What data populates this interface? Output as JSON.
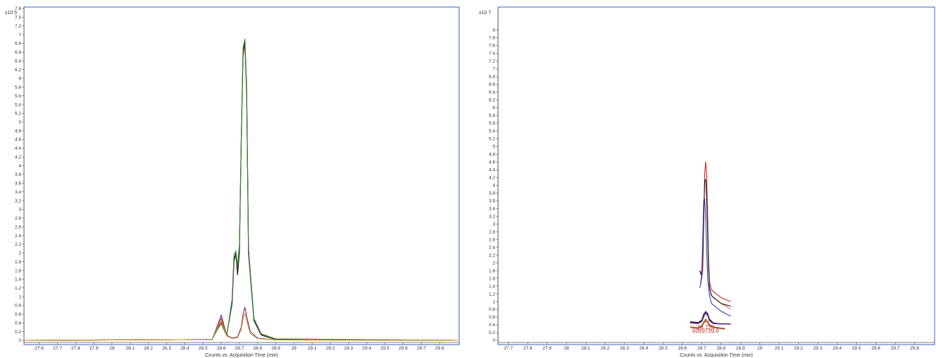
{
  "chart_data": [
    {
      "type": "line",
      "panel": "left",
      "y_multiplier": "x10 5",
      "xlabel": "Counts vs. Acquisition Time (min)",
      "xlim": [
        27.52,
        29.9
      ],
      "ylim": [
        0,
        7.6
      ],
      "x_ticks": [
        "27.6",
        "27.7",
        "27.8",
        "27.9",
        "28",
        "28.1",
        "28.2",
        "28.3",
        "28.4",
        "28.5",
        "28.6",
        "28.7",
        "28.8",
        "28.9",
        "29",
        "29.1",
        "29.2",
        "29.3",
        "29.4",
        "29.5",
        "29.6",
        "29.7",
        "29.8"
      ],
      "y_ticks": [
        "0",
        "0.2",
        "0.4",
        "0.6",
        "0.8",
        "1",
        "1.2",
        "1.4",
        "1.6",
        "1.8",
        "2",
        "2.2",
        "2.4",
        "2.6",
        "2.8",
        "3",
        "3.2",
        "3.4",
        "3.6",
        "3.8",
        "4",
        "4.2",
        "4.4",
        "4.6",
        "4.8",
        "5",
        "5.2",
        "5.4",
        "5.6",
        "5.8",
        "6",
        "6.2",
        "6.4",
        "6.6",
        "6.8",
        "7",
        "7.2",
        "7.4",
        "7.6"
      ],
      "series": [
        {
          "color": "#d62020",
          "x": [
            27.52,
            28.55,
            28.58,
            28.6,
            28.63,
            28.66,
            28.67,
            28.68,
            28.69,
            28.7,
            28.71,
            28.72,
            28.73,
            28.74,
            28.75,
            28.78,
            28.82,
            28.9,
            29.9
          ],
          "y": [
            0,
            0.02,
            0.28,
            0.42,
            0.12,
            0.9,
            1.9,
            1.95,
            1.6,
            2.1,
            4.5,
            6.5,
            6.8,
            5.6,
            2.0,
            0.5,
            0.15,
            0.03,
            0
          ]
        },
        {
          "color": "#1a1a1a",
          "x": [
            27.52,
            28.55,
            28.58,
            28.6,
            28.63,
            28.66,
            28.67,
            28.68,
            28.69,
            28.7,
            28.71,
            28.72,
            28.73,
            28.74,
            28.75,
            28.78,
            28.82,
            28.9,
            29.9
          ],
          "y": [
            0,
            0.02,
            0.3,
            0.5,
            0.12,
            0.85,
            1.8,
            2.0,
            1.5,
            2.0,
            4.6,
            6.6,
            6.85,
            5.7,
            2.0,
            0.45,
            0.12,
            0.02,
            0
          ]
        },
        {
          "color": "#2e8b2e",
          "x": [
            27.52,
            28.55,
            28.58,
            28.6,
            28.63,
            28.66,
            28.67,
            28.68,
            28.69,
            28.7,
            28.71,
            28.72,
            28.73,
            28.74,
            28.75,
            28.78,
            28.82,
            28.9,
            29.9
          ],
          "y": [
            0,
            0.02,
            0.25,
            0.38,
            0.1,
            0.95,
            1.95,
            2.05,
            1.7,
            2.2,
            4.6,
            6.7,
            6.9,
            5.8,
            2.1,
            0.5,
            0.14,
            0.03,
            0
          ]
        },
        {
          "color": "#8b1a8b",
          "x": [
            27.52,
            28.55,
            28.58,
            28.6,
            28.63,
            28.66,
            28.69,
            28.71,
            28.72,
            28.73,
            28.74,
            28.76,
            28.8,
            28.9,
            29.9
          ],
          "y": [
            0,
            0.02,
            0.35,
            0.58,
            0.12,
            0.05,
            0.08,
            0.3,
            0.6,
            0.76,
            0.55,
            0.2,
            0.05,
            0.01,
            0
          ]
        },
        {
          "color": "#c8a020",
          "x": [
            27.52,
            28.55,
            28.58,
            28.6,
            28.63,
            28.66,
            28.69,
            28.71,
            28.72,
            28.73,
            28.74,
            28.76,
            28.8,
            28.9,
            29.9
          ],
          "y": [
            0,
            0.02,
            0.3,
            0.48,
            0.1,
            0.04,
            0.06,
            0.25,
            0.5,
            0.62,
            0.45,
            0.15,
            0.04,
            0.01,
            0
          ]
        }
      ]
    },
    {
      "type": "line",
      "panel": "right",
      "y_multiplier": "x10 7",
      "xlabel": "Counts vs. Acquisition Time (min)",
      "xlim": [
        27.65,
        29.9
      ],
      "ylim": [
        0,
        8.3
      ],
      "x_ticks": [
        "27.7",
        "27.8",
        "27.9",
        "28",
        "28.1",
        "28.2",
        "28.3",
        "28.4",
        "28.5",
        "28.6",
        "28.7",
        "28.8",
        "28.9",
        "29",
        "29.1",
        "29.2",
        "29.3",
        "29.4",
        "29.5",
        "29.6",
        "29.7",
        "29.8"
      ],
      "y_ticks": [
        "0",
        "0.2",
        "0.4",
        "0.6",
        "0.8",
        "1",
        "1.2",
        "1.4",
        "1.6",
        "1.8",
        "2",
        "2.2",
        "2.4",
        "2.6",
        "2.8",
        "3",
        "3.2",
        "3.4",
        "3.6",
        "3.8",
        "4",
        "4.2",
        "4.4",
        "4.6",
        "4.8",
        "5",
        "5.2",
        "5.4",
        "5.6",
        "5.8",
        "6",
        "6.2",
        "6.4",
        "6.6",
        "6.8",
        "7",
        "7.2",
        "7.4",
        "7.6",
        "7.8",
        "8"
      ],
      "annotations": [
        {
          "text": "28.720",
          "x": 28.72,
          "y": 0.28
        },
        {
          "text": "6069739.8",
          "x": 28.72,
          "y": 0.19
        }
      ],
      "series": [
        {
          "color": "#d62020",
          "x": [
            28.695,
            28.705,
            28.71,
            28.715,
            28.72,
            28.725,
            28.73,
            28.735,
            28.74,
            28.75,
            28.8,
            28.85
          ],
          "y": [
            1.45,
            1.8,
            3.0,
            4.3,
            4.6,
            4.3,
            3.2,
            2.1,
            1.5,
            1.3,
            1.1,
            1.0
          ]
        },
        {
          "color": "#e07070",
          "x": [
            28.745,
            28.76,
            28.8,
            28.85
          ],
          "y": [
            1.2,
            1.1,
            0.95,
            0.8
          ]
        },
        {
          "color": "#1a1a1a",
          "x": [
            28.69,
            28.695,
            28.7,
            28.705,
            28.71,
            28.715,
            28.72,
            28.725,
            28.73,
            28.735,
            28.74,
            28.75,
            28.8,
            28.85
          ],
          "y": [
            1.8,
            1.7,
            1.8,
            2.2,
            3.3,
            4.1,
            4.15,
            3.7,
            2.8,
            1.9,
            1.35,
            1.15,
            0.95,
            0.88
          ]
        },
        {
          "color": "#2a3fbf",
          "x": [
            28.69,
            28.695,
            28.7,
            28.705,
            28.71,
            28.715,
            28.72,
            28.725,
            28.73,
            28.74,
            28.75,
            28.8,
            28.85
          ],
          "y": [
            1.35,
            1.5,
            1.75,
            2.6,
            3.6,
            3.65,
            3.2,
            2.4,
            1.6,
            1.15,
            0.95,
            0.75,
            0.62
          ]
        },
        {
          "color": "#2a3fbf",
          "x": [
            28.64,
            28.68,
            28.7,
            28.71,
            28.72,
            28.73,
            28.74,
            28.76,
            28.8,
            28.85
          ],
          "y": [
            0.47,
            0.44,
            0.5,
            0.65,
            0.75,
            0.7,
            0.55,
            0.45,
            0.43,
            0.43
          ]
        },
        {
          "color": "#1a1a1a",
          "x": [
            28.64,
            28.68,
            28.7,
            28.71,
            28.72,
            28.73,
            28.74,
            28.76,
            28.8,
            28.85
          ],
          "y": [
            0.48,
            0.46,
            0.52,
            0.68,
            0.72,
            0.66,
            0.52,
            0.44,
            0.42,
            0.42
          ]
        },
        {
          "color": "#8b1a8b",
          "x": [
            28.64,
            28.68,
            28.7,
            28.71,
            28.72,
            28.73,
            28.74,
            28.76,
            28.8,
            28.85
          ],
          "y": [
            0.45,
            0.43,
            0.48,
            0.6,
            0.7,
            0.64,
            0.5,
            0.43,
            0.42,
            0.42
          ]
        },
        {
          "color": "#2e8b2e",
          "x": [
            28.64,
            28.68,
            28.7,
            28.71,
            28.72,
            28.73,
            28.74,
            28.76,
            28.8,
            28.82
          ],
          "y": [
            0.35,
            0.33,
            0.38,
            0.48,
            0.55,
            0.5,
            0.4,
            0.35,
            0.32,
            0.31
          ]
        },
        {
          "color": "#c8a020",
          "x": [
            28.64,
            28.68,
            28.7,
            28.71,
            28.72,
            28.73,
            28.74,
            28.76,
            28.8,
            28.82
          ],
          "y": [
            0.34,
            0.32,
            0.37,
            0.46,
            0.53,
            0.48,
            0.38,
            0.34,
            0.31,
            0.3
          ]
        },
        {
          "color": "#d62020",
          "x": [
            28.64,
            28.68,
            28.7,
            28.71,
            28.72,
            28.73,
            28.74,
            28.76,
            28.8,
            28.82
          ],
          "y": [
            0.33,
            0.31,
            0.36,
            0.44,
            0.5,
            0.46,
            0.37,
            0.33,
            0.3,
            0.29
          ]
        }
      ]
    }
  ]
}
